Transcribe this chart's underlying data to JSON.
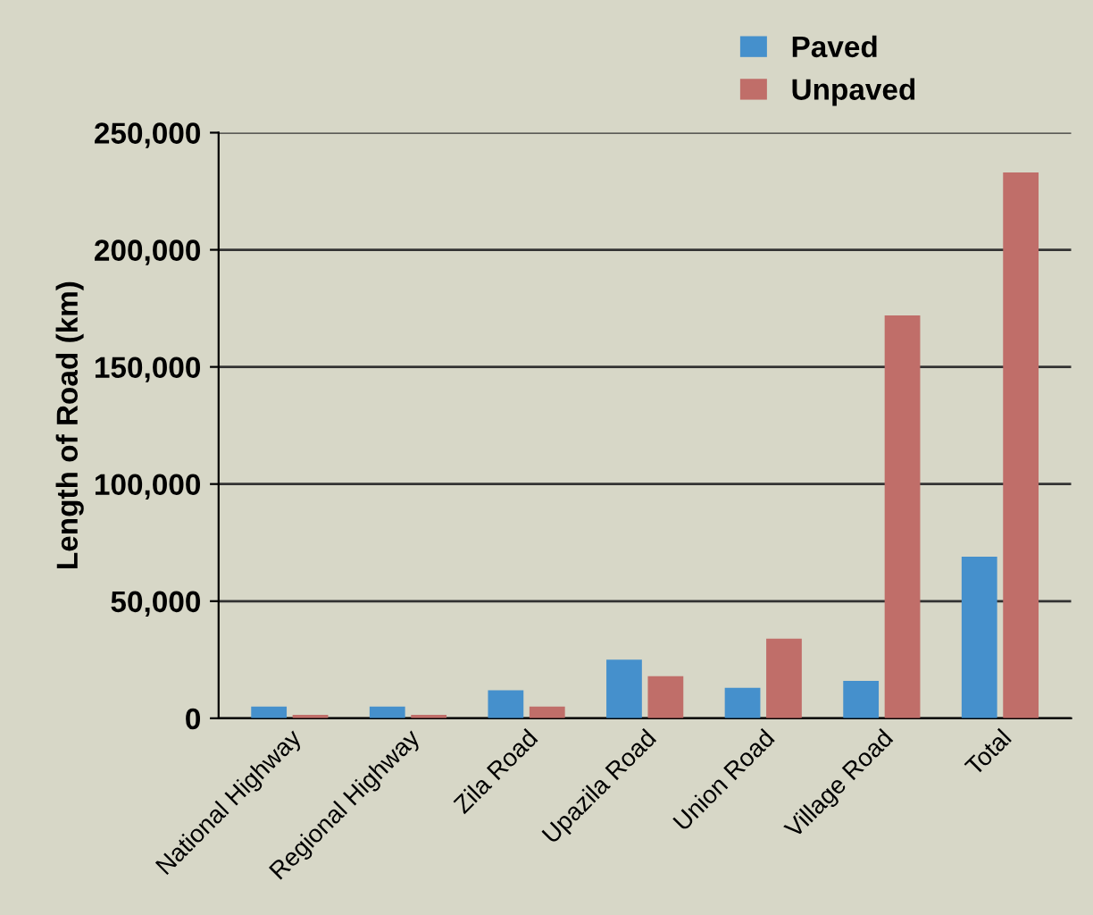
{
  "chart_data": {
    "type": "bar",
    "ylabel": "Length of Road (km)",
    "categories": [
      "National Highway",
      "Regional Highway",
      "Zila Road",
      "Upazila Road",
      "Union Road",
      "Village Road",
      "Total"
    ],
    "series": [
      {
        "name": "Paved",
        "color": "#4590cc",
        "values": [
          5000,
          5000,
          12000,
          25000,
          13000,
          16000,
          69000
        ]
      },
      {
        "name": "Unpaved",
        "color": "#c06e69",
        "values": [
          1500,
          1500,
          5000,
          18000,
          34000,
          172000,
          233000
        ]
      }
    ],
    "ylim": [
      0,
      250000
    ],
    "yticks": [
      {
        "value": 0,
        "label": "0"
      },
      {
        "value": 50000,
        "label": "50,000"
      },
      {
        "value": 100000,
        "label": "100,000"
      },
      {
        "value": 150000,
        "label": "150,000"
      },
      {
        "value": 200000,
        "label": "200,000"
      },
      {
        "value": 250000,
        "label": "250,000"
      }
    ],
    "grid": "y",
    "legend": "top right"
  }
}
